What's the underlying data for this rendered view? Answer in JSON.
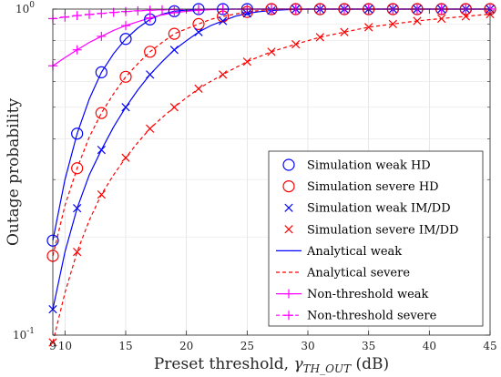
{
  "chart_data": {
    "type": "line",
    "xlabel": "Preset threshold, γ_TH_OUT (dB)",
    "xlabel_parts": [
      "Preset threshold, ",
      "γ",
      "TH_OUT",
      " (dB)"
    ],
    "ylabel": "Outage probability",
    "xlim": [
      9,
      45
    ],
    "ylim": [
      0.1,
      1
    ],
    "yscale": "log",
    "grid": true,
    "legend_position": "bottom-right",
    "x_ticks": [
      {
        "value": 9,
        "label": "9"
      },
      {
        "value": 10,
        "label": "10"
      },
      {
        "value": 15,
        "label": "15"
      },
      {
        "value": 20,
        "label": "20"
      },
      {
        "value": 25,
        "label": "25"
      },
      {
        "value": 30,
        "label": "30"
      },
      {
        "value": 35,
        "label": "35"
      },
      {
        "value": 40,
        "label": "40"
      },
      {
        "value": 45,
        "label": "45"
      }
    ],
    "y_ticks": [
      {
        "value": 0.1,
        "base": "10",
        "exp": "-1"
      },
      {
        "value": 1,
        "base": "10",
        "exp": "0"
      }
    ],
    "series": [
      {
        "name": "Simulation weak HD",
        "kind": "marker",
        "marker": "circle",
        "color": "#0000ff",
        "x": [
          9,
          11,
          13,
          15,
          17,
          19,
          21,
          23,
          25,
          27,
          29,
          31,
          33,
          35,
          37,
          39,
          41,
          43,
          45
        ],
        "y": [
          0.195,
          0.415,
          0.64,
          0.81,
          0.93,
          0.985,
          1,
          1,
          1,
          1,
          1,
          1,
          1,
          1,
          1,
          1,
          1,
          1,
          1
        ]
      },
      {
        "name": "Simulation severe HD",
        "kind": "marker",
        "marker": "circle",
        "color": "#ff0000",
        "x": [
          9,
          11,
          13,
          15,
          17,
          19,
          21,
          23,
          25,
          27,
          29,
          31,
          33,
          35,
          37,
          39,
          41,
          43,
          45
        ],
        "y": [
          0.175,
          0.325,
          0.48,
          0.62,
          0.74,
          0.84,
          0.9,
          0.95,
          0.98,
          1,
          1,
          1,
          1,
          1,
          1,
          1,
          1,
          1,
          1
        ]
      },
      {
        "name": "Simulation weak IM/DD",
        "kind": "marker",
        "marker": "x",
        "color": "#0000ff",
        "x": [
          9,
          11,
          13,
          15,
          17,
          19,
          21,
          23,
          25,
          27,
          29,
          31,
          33,
          35,
          37,
          39,
          41,
          43,
          45
        ],
        "y": [
          0.12,
          0.245,
          0.37,
          0.5,
          0.63,
          0.75,
          0.85,
          0.92,
          0.97,
          0.99,
          1,
          1,
          1,
          1,
          1,
          1,
          1,
          1,
          1
        ]
      },
      {
        "name": "Simulation severe IM/DD",
        "kind": "marker",
        "marker": "x",
        "color": "#ff0000",
        "x": [
          9,
          11,
          13,
          15,
          17,
          19,
          21,
          23,
          25,
          27,
          29,
          31,
          33,
          35,
          37,
          39,
          41,
          43,
          45
        ],
        "y": [
          0.095,
          0.18,
          0.27,
          0.35,
          0.43,
          0.5,
          0.57,
          0.63,
          0.69,
          0.74,
          0.78,
          0.82,
          0.85,
          0.88,
          0.9,
          0.92,
          0.935,
          0.95,
          0.965
        ]
      },
      {
        "name": "Analytical weak",
        "kind": "line",
        "dash": "solid",
        "color": "#0000ff",
        "x": [
          9,
          10,
          11,
          12,
          13,
          14,
          15,
          16,
          17,
          18,
          19,
          20,
          21,
          22,
          23,
          24,
          25,
          26,
          27,
          28,
          29,
          30,
          32,
          35,
          40,
          45
        ],
        "y": [
          0.195,
          0.3,
          0.415,
          0.53,
          0.64,
          0.73,
          0.81,
          0.875,
          0.93,
          0.965,
          0.985,
          0.993,
          0.997,
          0.999,
          1,
          1,
          1,
          1,
          1,
          1,
          1,
          1,
          1,
          1,
          1,
          1
        ]
      },
      {
        "name": "Analytical weak (IM/DD)",
        "legend": false,
        "kind": "line",
        "dash": "solid",
        "color": "#0000ff",
        "x": [
          9,
          10,
          11,
          12,
          13,
          14,
          15,
          16,
          17,
          18,
          19,
          20,
          21,
          22,
          23,
          24,
          25,
          26,
          27,
          28,
          29,
          30,
          32,
          35,
          40,
          45
        ],
        "y": [
          0.12,
          0.18,
          0.245,
          0.31,
          0.37,
          0.435,
          0.5,
          0.565,
          0.63,
          0.69,
          0.75,
          0.8,
          0.85,
          0.89,
          0.92,
          0.95,
          0.97,
          0.982,
          0.99,
          0.995,
          0.998,
          1,
          1,
          1,
          1,
          1
        ]
      },
      {
        "name": "Analytical severe",
        "kind": "line",
        "dash": "dashed",
        "color": "#ff0000",
        "x": [
          9,
          10,
          11,
          12,
          13,
          14,
          15,
          16,
          17,
          18,
          19,
          20,
          21,
          22,
          23,
          24,
          25,
          26,
          27,
          28,
          29,
          30,
          32,
          35,
          40,
          45
        ],
        "y": [
          0.175,
          0.25,
          0.325,
          0.405,
          0.48,
          0.55,
          0.62,
          0.68,
          0.74,
          0.79,
          0.84,
          0.87,
          0.9,
          0.93,
          0.95,
          0.965,
          0.98,
          0.99,
          1,
          1,
          1,
          1,
          1,
          1,
          1,
          1
        ]
      },
      {
        "name": "Analytical severe (IM/DD)",
        "legend": false,
        "kind": "line",
        "dash": "dashed",
        "color": "#ff0000",
        "x": [
          9,
          10,
          11,
          12,
          13,
          14,
          15,
          16,
          17,
          18,
          19,
          20,
          21,
          22,
          23,
          24,
          25,
          26,
          27,
          28,
          29,
          30,
          31,
          32,
          33,
          34,
          35,
          36,
          37,
          38,
          39,
          40,
          41,
          42,
          43,
          44,
          45
        ],
        "y": [
          0.095,
          0.135,
          0.18,
          0.225,
          0.27,
          0.31,
          0.35,
          0.39,
          0.43,
          0.465,
          0.5,
          0.535,
          0.57,
          0.6,
          0.63,
          0.66,
          0.69,
          0.715,
          0.74,
          0.76,
          0.78,
          0.8,
          0.82,
          0.835,
          0.85,
          0.865,
          0.88,
          0.89,
          0.9,
          0.91,
          0.92,
          0.928,
          0.935,
          0.943,
          0.95,
          0.958,
          0.965
        ]
      },
      {
        "name": "Non-threshold weak",
        "kind": "line+marker",
        "marker": "plus",
        "dash": "solid",
        "color": "#ff00ff",
        "x": [
          9,
          10,
          11,
          12,
          13,
          14,
          15,
          16,
          17,
          18,
          19,
          20,
          21,
          22,
          23,
          24,
          25,
          26,
          27,
          28,
          29,
          30,
          35,
          40,
          45
        ],
        "y": [
          0.67,
          0.71,
          0.75,
          0.79,
          0.825,
          0.86,
          0.89,
          0.915,
          0.94,
          0.96,
          0.975,
          0.985,
          0.992,
          0.996,
          0.998,
          1,
          1,
          1,
          1,
          1,
          1,
          1,
          1,
          1,
          1
        ],
        "marker_x": [
          9,
          11,
          13,
          15,
          17,
          19,
          21,
          23,
          25,
          27,
          29,
          31,
          33,
          35,
          37,
          39,
          41,
          43,
          45
        ]
      },
      {
        "name": "Non-threshold severe",
        "kind": "line+marker",
        "marker": "plus",
        "dash": "dashed",
        "color": "#ff00ff",
        "x": [
          9,
          10,
          11,
          12,
          13,
          14,
          15,
          16,
          17,
          18,
          19,
          20,
          21,
          22,
          23,
          24,
          25,
          30,
          35,
          40,
          45
        ],
        "y": [
          0.935,
          0.945,
          0.955,
          0.963,
          0.97,
          0.977,
          0.983,
          0.988,
          0.992,
          0.995,
          0.997,
          0.998,
          0.999,
          1,
          1,
          1,
          1,
          1,
          1,
          1,
          1
        ],
        "marker_x": [
          9,
          10,
          11,
          12,
          13,
          14,
          15,
          16,
          17,
          18,
          19,
          21,
          23,
          25,
          27,
          29,
          31,
          33,
          35,
          37,
          39,
          41,
          43,
          45
        ]
      }
    ]
  }
}
